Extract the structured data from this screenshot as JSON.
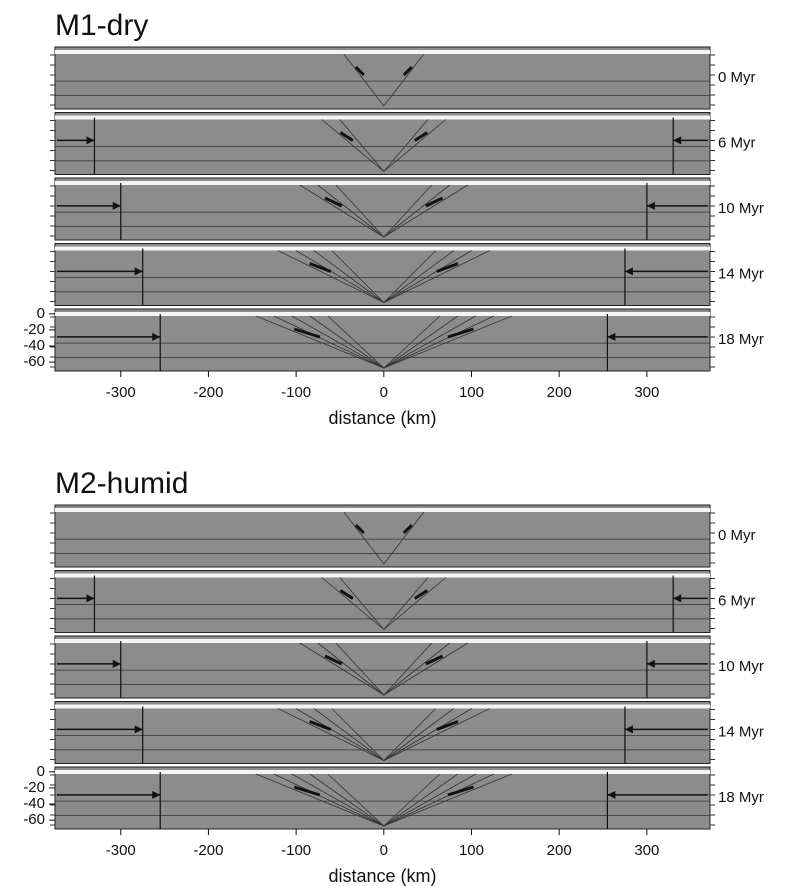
{
  "chart_data": [
    {
      "type": "cross-section",
      "title": "M1-dry",
      "x_label": "distance (km)",
      "xlim": [
        -375,
        372
      ],
      "xticks": [
        -300,
        -200,
        -100,
        0,
        100,
        200,
        300
      ],
      "ylim": [
        -71,
        6
      ],
      "yticks": [
        0,
        -20,
        -40,
        -60
      ],
      "panels": [
        {
          "label": "0 Myr"
        },
        {
          "label": "6 Myr",
          "wall_x": 330
        },
        {
          "label": "10 Myr",
          "wall_x": 300
        },
        {
          "label": "14 Myr",
          "wall_x": 275
        },
        {
          "label": "18 Myr",
          "wall_x": 255
        }
      ]
    },
    {
      "type": "cross-section",
      "title": "M2-humid",
      "x_label": "distance (km)",
      "xlim": [
        -375,
        372
      ],
      "xticks": [
        -300,
        -200,
        -100,
        0,
        100,
        200,
        300
      ],
      "ylim": [
        -71,
        6
      ],
      "yticks": [
        0,
        -20,
        -40,
        -60
      ],
      "panels": [
        {
          "label": "0 Myr"
        },
        {
          "label": "6 Myr",
          "wall_x": 330
        },
        {
          "label": "10 Myr",
          "wall_x": 300
        },
        {
          "label": "14 Myr",
          "wall_x": 275
        },
        {
          "label": "18 Myr",
          "wall_x": 255
        }
      ]
    }
  ]
}
